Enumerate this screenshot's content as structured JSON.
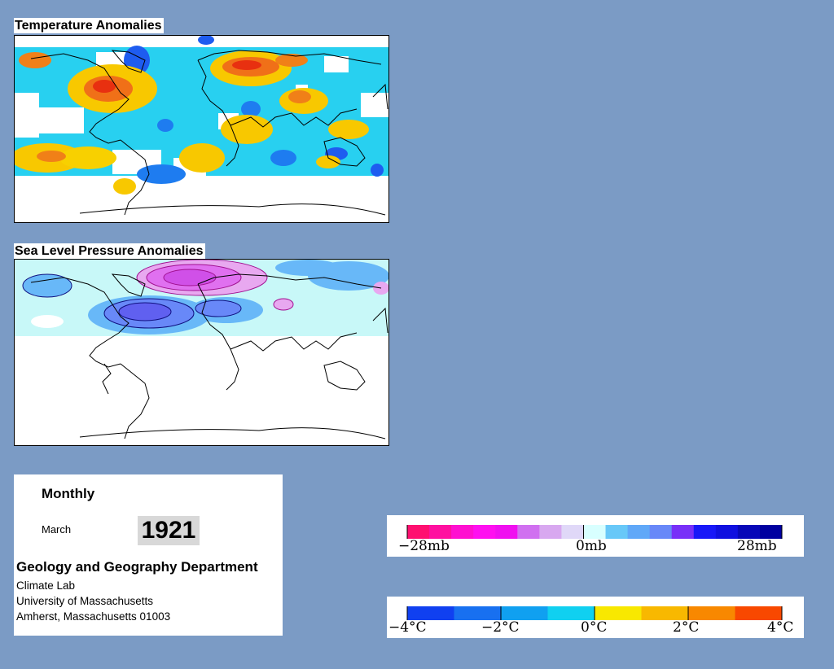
{
  "panels": {
    "temperature_title": "Temperature Anomalies",
    "pressure_title": "Sea Level Pressure Anomalies"
  },
  "info": {
    "period": "Monthly",
    "month": "March",
    "year": "1921",
    "department": "Geology and Geography Department",
    "lab": "Climate Lab",
    "university": "University of Massachusetts",
    "address": "Amherst, Massachusetts 01003"
  },
  "legends": {
    "pressure": {
      "labels": [
        "−28mb",
        "0mb",
        "28mb"
      ],
      "colors": [
        "#ff1070",
        "#ff10a0",
        "#ff10d0",
        "#ff10f0",
        "#f010f0",
        "#d070f0",
        "#d8a8f0",
        "#e0d8f8",
        "#d8ffff",
        "#68c8f8",
        "#60a8f8",
        "#6888f8",
        "#7830f8",
        "#1818f8",
        "#1010e0",
        "#0808b8",
        "#0000a0"
      ]
    },
    "temperature": {
      "labels": [
        "−4°C",
        "−2°C",
        "0°C",
        "2°C",
        "4°C"
      ],
      "colors": [
        "#1040f0",
        "#1870f0",
        "#10a0f0",
        "#10d0f0",
        "#f8e800",
        "#f8b800",
        "#f88800",
        "#f84800"
      ]
    }
  },
  "colors": {
    "background": "#7b9bc5",
    "temp_cold": "#1e5cf0",
    "temp_cool": "#18c8f0",
    "temp_warm": "#f8c800",
    "temp_hot": "#f03818",
    "slp_high": "#e070f0",
    "slp_low": "#6070f0",
    "slp_light": "#c8f8f8"
  }
}
